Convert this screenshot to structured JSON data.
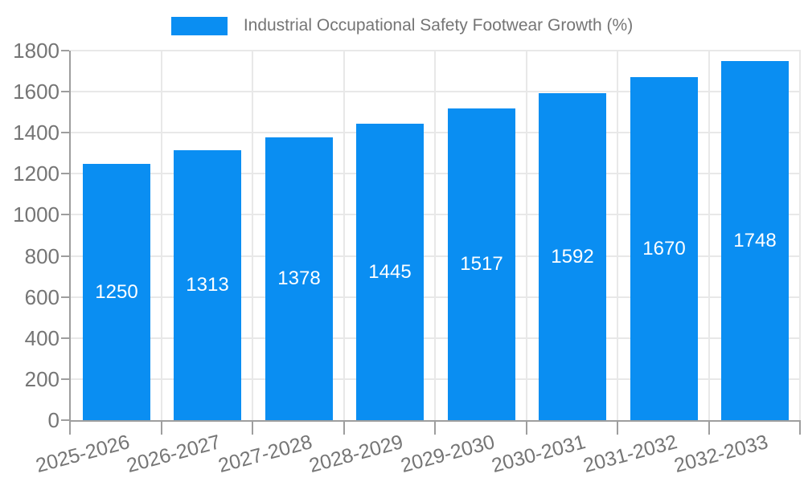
{
  "chart_data": {
    "type": "bar",
    "title": "Industrial Occupational Safety Footwear Growth (%)",
    "categories": [
      "2025-2026",
      "2026-2027",
      "2027-2028",
      "2028-2029",
      "2029-2030",
      "2030-2031",
      "2031-2032",
      "2032-2033"
    ],
    "values": [
      1250,
      1313,
      1378,
      1445,
      1517,
      1592,
      1670,
      1748
    ],
    "xlabel": "",
    "ylabel": "",
    "ylim": [
      0,
      1800
    ],
    "yticks": [
      0,
      200,
      400,
      600,
      800,
      1000,
      1200,
      1400,
      1600,
      1800
    ],
    "grid": true,
    "legend_position": "top",
    "bar_color": "#0a8ef2",
    "bar_label_color": "#ffffff",
    "axis_color": "#9e9e9e",
    "grid_color": "#e8e8e8",
    "text_color": "#757575"
  }
}
